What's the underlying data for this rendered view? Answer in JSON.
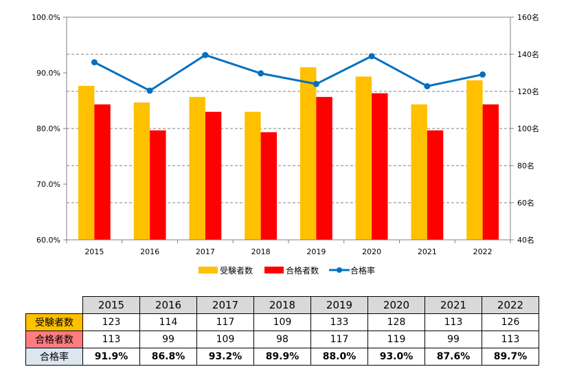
{
  "chart_data": {
    "type": "bar",
    "categories": [
      "2015",
      "2016",
      "2017",
      "2018",
      "2019",
      "2020",
      "2021",
      "2022"
    ],
    "series": [
      {
        "name": "受験者数",
        "type": "bar",
        "axis": "right",
        "color": "#ffc000",
        "values": [
          123,
          114,
          117,
          109,
          133,
          128,
          113,
          126
        ]
      },
      {
        "name": "合格者数",
        "type": "bar",
        "axis": "right",
        "color": "#ff0000",
        "values": [
          113,
          99,
          109,
          98,
          117,
          119,
          99,
          113
        ]
      },
      {
        "name": "合格率",
        "type": "line",
        "axis": "left",
        "color": "#0070c0",
        "values": [
          91.9,
          86.8,
          93.2,
          89.9,
          88.0,
          93.0,
          87.6,
          89.7
        ]
      }
    ],
    "left_axis": {
      "range": [
        60,
        100
      ],
      "ticks": [
        "60.0%",
        "70.0%",
        "80.0%",
        "90.0%",
        "100.0%"
      ],
      "tick_values": [
        60,
        70,
        80,
        90,
        100
      ]
    },
    "right_axis": {
      "range": [
        40,
        160
      ],
      "ticks": [
        "40名",
        "60名",
        "80名",
        "100名",
        "120名",
        "140名",
        "160名"
      ],
      "tick_values": [
        40,
        60,
        80,
        100,
        120,
        140,
        160
      ]
    },
    "grid": true,
    "legend_position": "bottom"
  },
  "table": {
    "years": [
      "2015",
      "2016",
      "2017",
      "2018",
      "2019",
      "2020",
      "2021",
      "2022"
    ],
    "rows": [
      {
        "label": "受験者数",
        "label_color": "#ffc000",
        "values": [
          "123",
          "114",
          "117",
          "109",
          "133",
          "128",
          "113",
          "126"
        ]
      },
      {
        "label": "合格者数",
        "label_color": "#ff7c80",
        "values": [
          "113",
          "99",
          "109",
          "98",
          "117",
          "119",
          "99",
          "113"
        ]
      },
      {
        "label": "合格率",
        "label_color": "#dce6f1",
        "values": [
          "91.9%",
          "86.8%",
          "93.2%",
          "89.9%",
          "88.0%",
          "93.0%",
          "87.6%",
          "89.7%"
        ]
      }
    ]
  }
}
